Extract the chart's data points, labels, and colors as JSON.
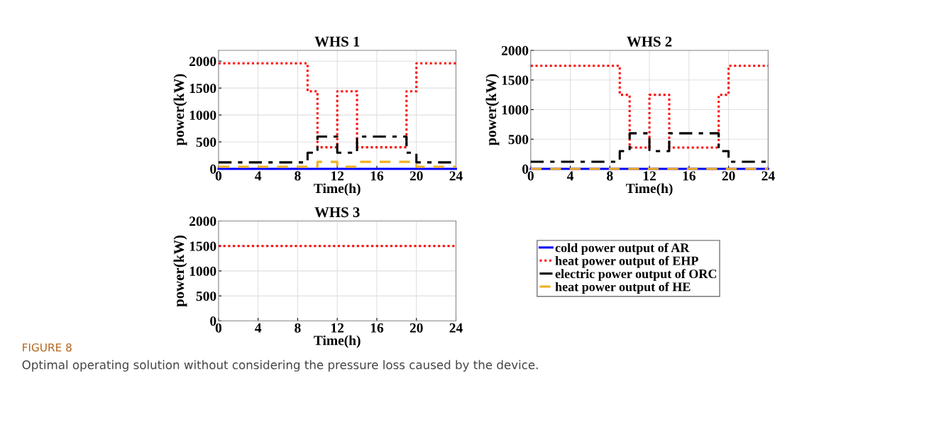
{
  "chart_data": [
    {
      "type": "step",
      "title": "WHS 1",
      "xlabel": "Time(h)",
      "ylabel": "power(kW)",
      "x": [
        0,
        9,
        10,
        12,
        14,
        19,
        20,
        24
      ],
      "xlim": [
        0,
        24
      ],
      "xticks": [
        0,
        4,
        8,
        12,
        16,
        20,
        24
      ],
      "ylim": [
        0,
        2200
      ],
      "yticks": [
        0,
        500,
        1000,
        1500,
        2000
      ],
      "grid": true,
      "series": [
        {
          "color": "#0000ff",
          "line_style": "solid",
          "values": [
            0,
            0,
            0,
            0,
            0,
            0,
            0,
            0
          ]
        },
        {
          "color": "#ff0000",
          "line_style": "dotted",
          "values": [
            1960,
            1440,
            400,
            1440,
            400,
            1440,
            1960,
            1960
          ]
        },
        {
          "color": "#000000",
          "line_style": "dashdot",
          "values": [
            120,
            300,
            600,
            300,
            600,
            300,
            120,
            120
          ]
        },
        {
          "color": "#f0b020",
          "line_style": "dashed",
          "values": [
            40,
            40,
            130,
            40,
            130,
            130,
            40,
            40
          ]
        }
      ]
    },
    {
      "type": "step",
      "title": "WHS 2",
      "xlabel": "Time(h)",
      "ylabel": "power(kW)",
      "x": [
        0,
        9,
        10,
        12,
        14,
        19,
        20,
        24
      ],
      "xlim": [
        0,
        24
      ],
      "xticks": [
        0,
        4,
        8,
        12,
        16,
        20,
        24
      ],
      "ylim": [
        0,
        2000
      ],
      "yticks": [
        0,
        500,
        1000,
        1500,
        2000
      ],
      "grid": true,
      "legend": "bottom",
      "series": [
        {
          "name": "cold power output of AR",
          "color": "#0000ff",
          "line_style": "solid",
          "values": [
            0,
            0,
            0,
            0,
            0,
            0,
            0,
            0
          ]
        },
        {
          "name": "heat power output of EHP",
          "color": "#ff0000",
          "line_style": "dotted",
          "values": [
            1740,
            1250,
            360,
            1250,
            360,
            1250,
            1740,
            1740
          ]
        },
        {
          "name": "electric power output of ORC",
          "color": "#000000",
          "line_style": "dashdot",
          "values": [
            120,
            300,
            600,
            300,
            600,
            300,
            120,
            120
          ]
        },
        {
          "name": "heat power output of HE",
          "color": "#f0b020",
          "line_style": "dashed",
          "values": [
            0,
            0,
            0,
            0,
            0,
            0,
            0,
            0
          ]
        }
      ]
    },
    {
      "type": "step",
      "title": "WHS 3",
      "xlabel": "Time(h)",
      "ylabel": "power(kW)",
      "x": [
        0,
        24
      ],
      "xlim": [
        0,
        24
      ],
      "xticks": [
        0,
        4,
        8,
        12,
        16,
        20,
        24
      ],
      "ylim": [
        0,
        2000
      ],
      "yticks": [
        0,
        500,
        1000,
        1500,
        2000
      ],
      "grid": true,
      "series": [
        {
          "color": "#ff0000",
          "line_style": "dotted",
          "values": [
            1500,
            1500
          ]
        }
      ],
      "annotations": [
        "FIGURE 8",
        "Optimal operating solution without considering the pressure loss caused by the device."
      ]
    }
  ]
}
